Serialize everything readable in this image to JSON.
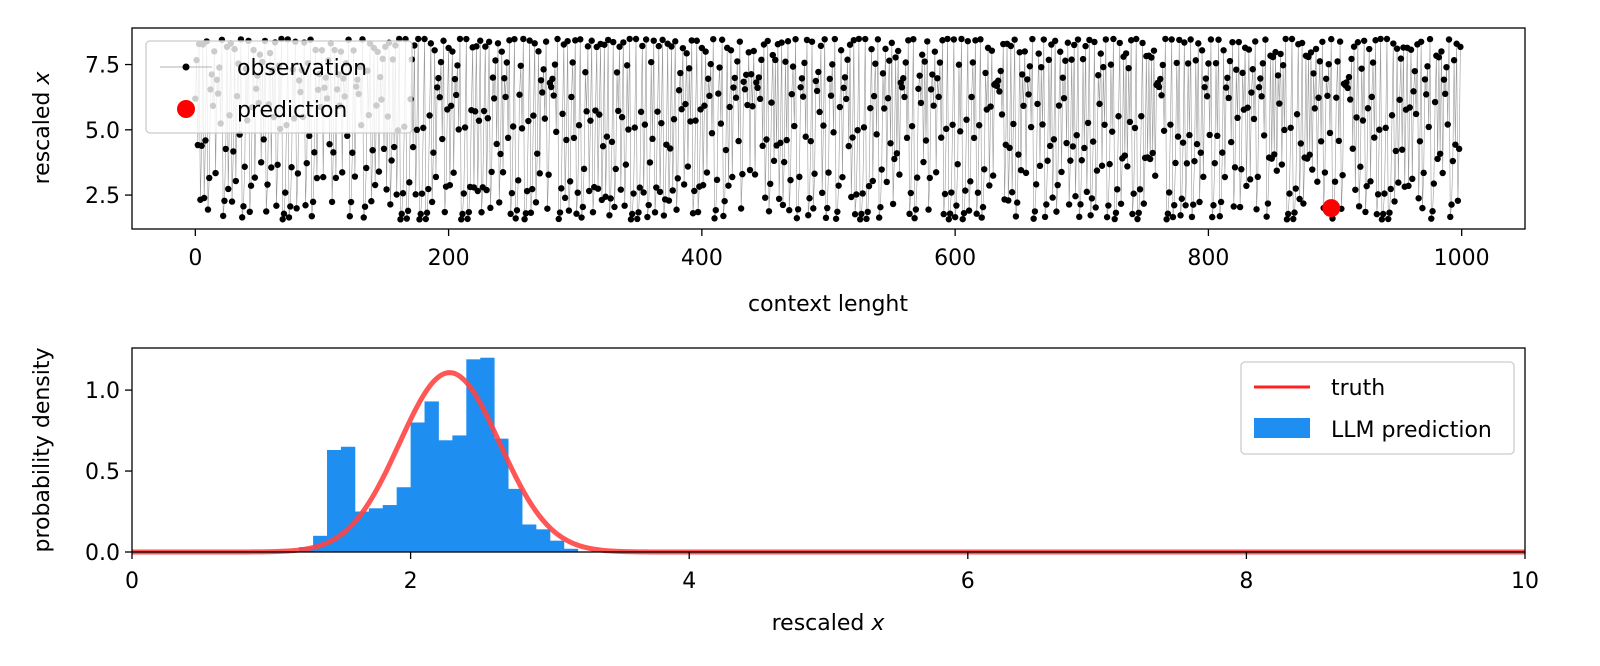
{
  "chart_data": [
    {
      "type": "line",
      "xlabel": "context lenght",
      "ylabel_prefix": "rescaled ",
      "ylabel_var": "x",
      "xlim": [
        -50,
        1050
      ],
      "ylim": [
        1.2,
        8.9
      ],
      "xticks": [
        0,
        200,
        400,
        600,
        800,
        1000
      ],
      "xtick_labels": [
        "0",
        "200",
        "400",
        "600",
        "800",
        "1000"
      ],
      "yticks": [
        2.5,
        5.0,
        7.5
      ],
      "ytick_labels": [
        "2.5",
        "5.0",
        "7.5"
      ],
      "legend": {
        "position": "upper left",
        "entries": [
          "observation",
          "prediction"
        ]
      },
      "series": [
        {
          "name": "observation",
          "color": "#000000",
          "line_color": "#9a9a9a",
          "description": "deterministic chaotic sequence of 1000 context points, values ranging roughly 1.5 to 8.5",
          "x_range": [
            0,
            999
          ],
          "y_range": [
            1.5,
            8.5
          ]
        },
        {
          "name": "prediction",
          "color": "#ff0000",
          "x": [
            897
          ],
          "y": [
            2.0
          ]
        }
      ]
    },
    {
      "type": "bar",
      "xlabel_prefix": "rescaled ",
      "xlabel_var": "x",
      "ylabel": "probability density",
      "xlim": [
        0,
        10
      ],
      "ylim": [
        0,
        1.26
      ],
      "xticks": [
        0,
        2,
        4,
        6,
        8,
        10
      ],
      "xtick_labels": [
        "0",
        "2",
        "4",
        "6",
        "8",
        "10"
      ],
      "yticks": [
        0.0,
        0.5,
        1.0
      ],
      "ytick_labels": [
        "0.0",
        "0.5",
        "1.0"
      ],
      "legend": {
        "position": "upper right",
        "entries": [
          "truth",
          "LLM prediction"
        ]
      },
      "histogram": {
        "name": "LLM prediction",
        "color": "#1f8ef1",
        "bin_edges": [
          1.2,
          1.3,
          1.4,
          1.5,
          1.6,
          1.7,
          1.8,
          1.9,
          2.0,
          2.1,
          2.2,
          2.3,
          2.4,
          2.5,
          2.6,
          2.7,
          2.8,
          2.9,
          3.0,
          3.1,
          3.2
        ],
        "values": [
          0.03,
          0.1,
          0.63,
          0.65,
          0.25,
          0.27,
          0.29,
          0.4,
          0.8,
          0.93,
          0.69,
          0.72,
          1.19,
          1.2,
          0.7,
          0.39,
          0.17,
          0.14,
          0.07,
          0.02
        ]
      },
      "truth": {
        "name": "truth",
        "color": "#ff4444",
        "distribution": "normal",
        "mean": 2.28,
        "std": 0.36
      }
    }
  ]
}
